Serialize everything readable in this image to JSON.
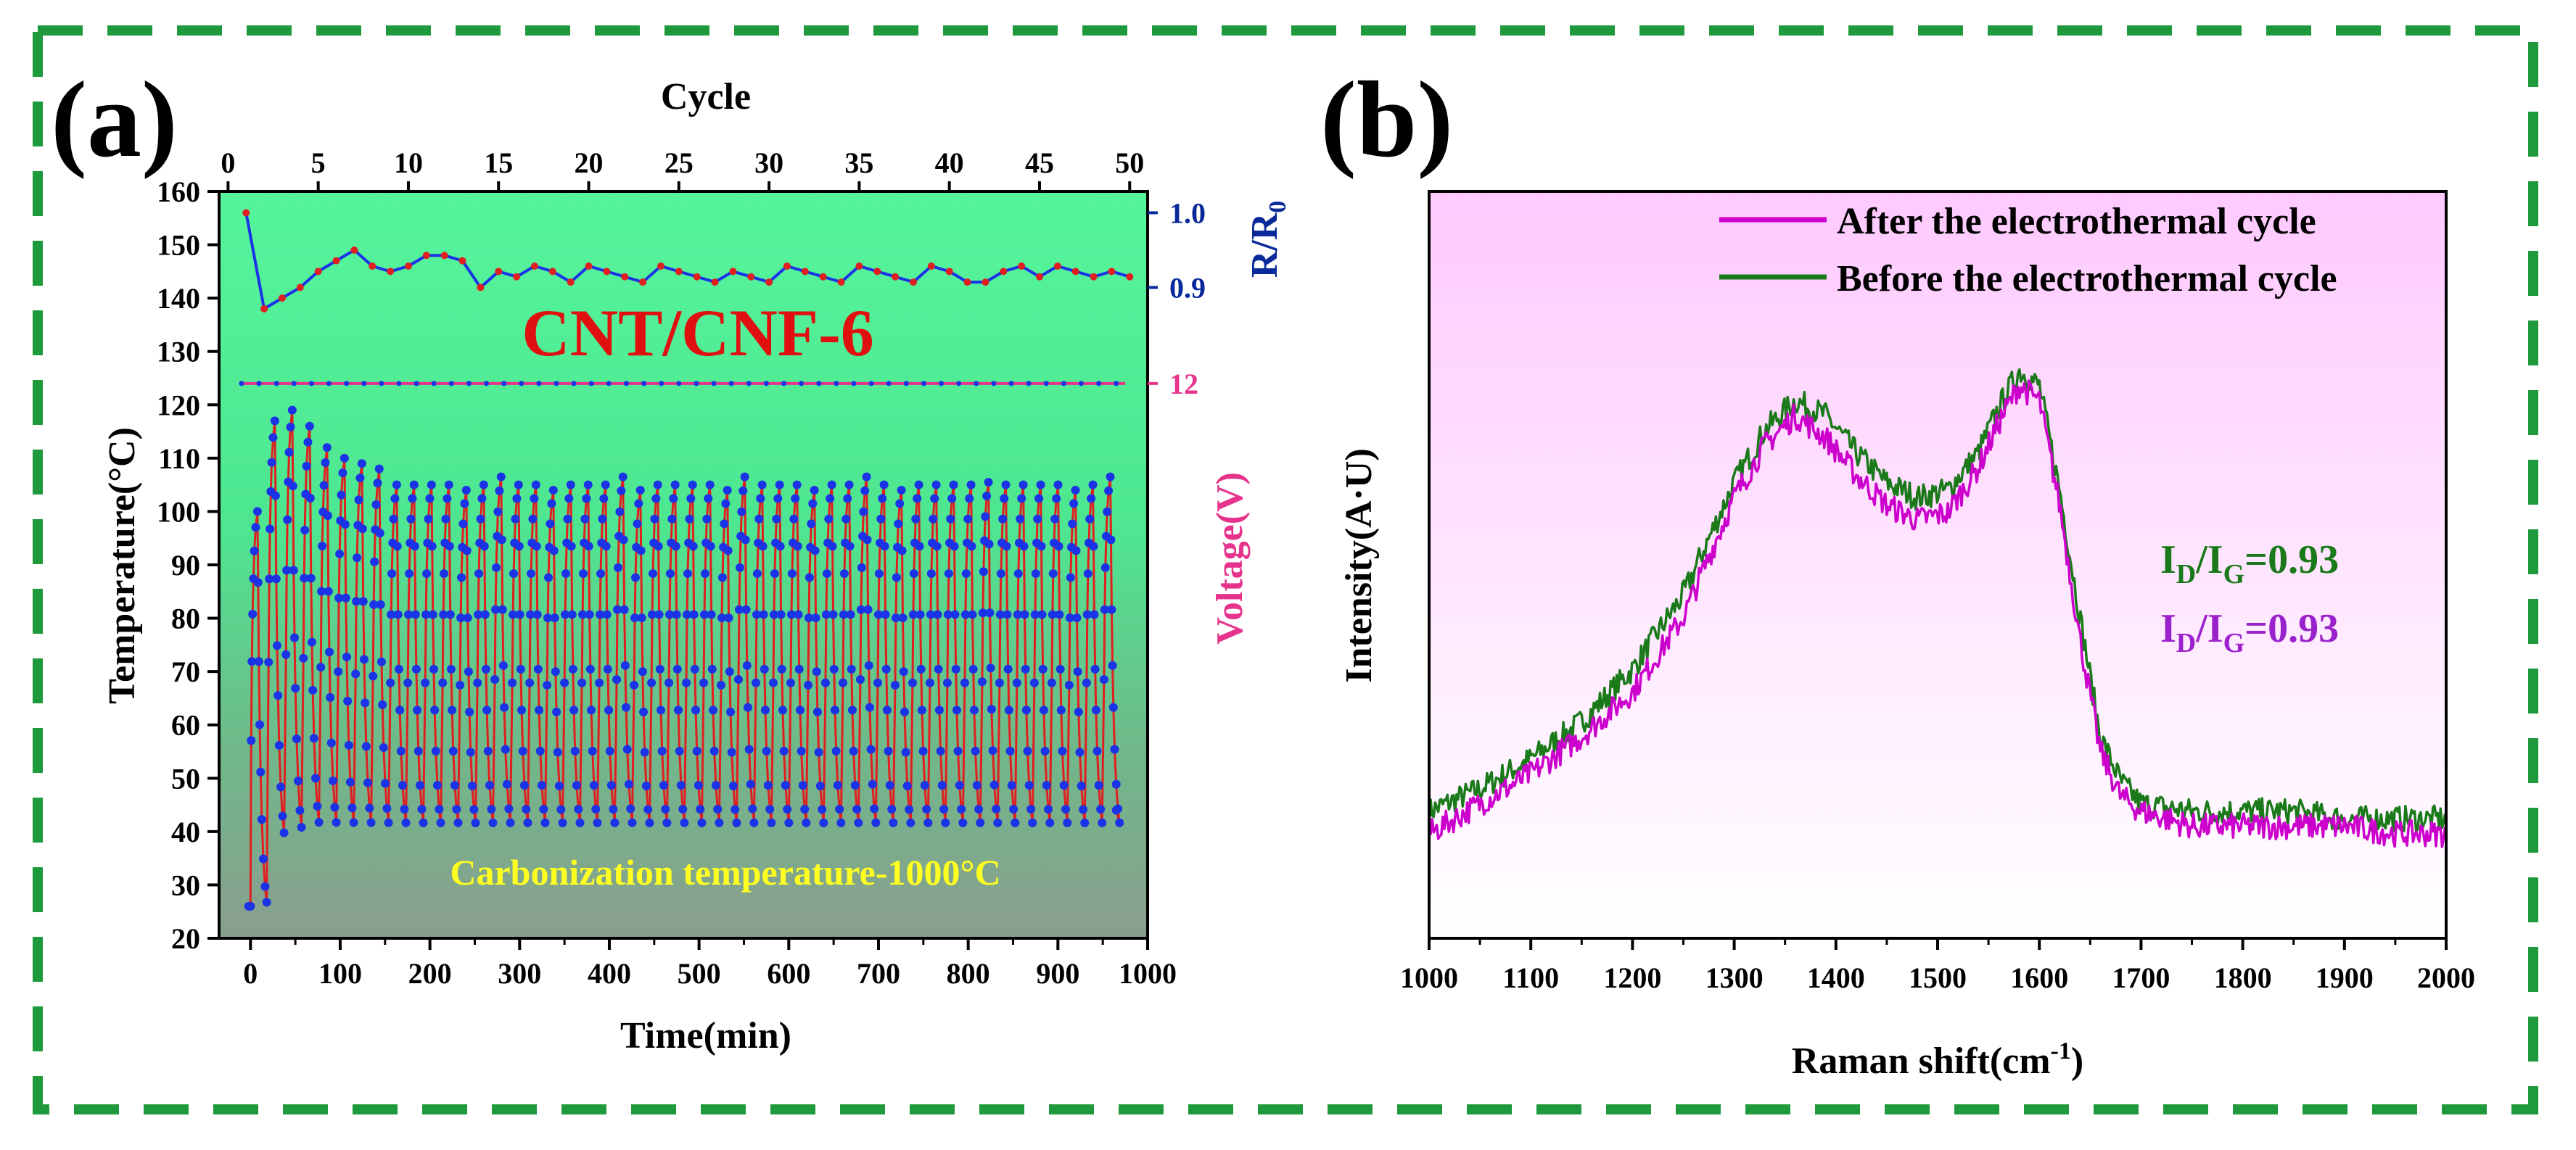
{
  "panel_a": {
    "label": "(a)",
    "sample_label": "CNT/CNF-6",
    "carbonization_text": "Carbonization temperature-1000°C",
    "chart_data": {
      "type": "line",
      "title": "",
      "xlabel": "Time(min)",
      "ylabel": "Temperature(°C)",
      "top_xlabel": "Cycle",
      "right_ylabel_r": "R/R",
      "right_ylabel_r_sub": "0",
      "right_ylabel_v": "Voltage(V)",
      "xlim": [
        -35,
        1000
      ],
      "ylim": [
        20,
        160
      ],
      "top_xlim": [
        0,
        50
      ],
      "xticks": [
        0,
        100,
        200,
        300,
        400,
        500,
        600,
        700,
        800,
        900,
        1000
      ],
      "yticks": [
        20,
        30,
        40,
        50,
        60,
        70,
        80,
        90,
        100,
        110,
        120,
        130,
        140,
        150,
        160
      ],
      "top_xticks": [
        0,
        5,
        10,
        15,
        20,
        25,
        30,
        35,
        40,
        45,
        50
      ],
      "right_r_ticks": [
        {
          "label": "1.0",
          "temp_equiv": 156
        },
        {
          "label": "0.9",
          "temp_equiv": 142
        }
      ],
      "right_v_ticks": [
        {
          "label": "12",
          "temp_equiv": 124
        }
      ],
      "cycles": 50,
      "period_min": 19.4,
      "temperature": {
        "start": 26,
        "steady_max": 105,
        "steady_min": 41,
        "early_peaks": [
          100,
          117,
          119,
          116,
          112,
          110,
          109,
          108
        ]
      },
      "resistance_ratio": {
        "cycle": [
          1,
          2,
          3,
          4,
          5,
          6,
          7,
          8,
          9,
          10,
          11,
          12,
          13,
          14,
          15,
          16,
          17,
          18,
          19,
          20,
          21,
          22,
          23,
          24,
          25,
          26,
          27,
          28,
          29,
          30,
          31,
          32,
          33,
          34,
          35,
          36,
          37,
          38,
          39,
          40,
          41,
          42,
          43,
          44,
          45,
          46,
          47,
          48,
          49,
          50
        ],
        "temp_equiv": [
          156,
          138,
          140,
          142,
          145,
          147,
          149,
          146,
          145,
          146,
          148,
          148,
          147,
          142,
          145,
          144,
          146,
          145,
          143,
          146,
          145,
          144,
          143,
          146,
          145,
          144,
          143,
          145,
          144,
          143,
          146,
          145,
          144,
          143,
          146,
          145,
          144,
          143,
          146,
          145,
          143,
          143,
          145,
          146,
          144,
          146,
          145,
          144,
          145,
          144
        ]
      },
      "voltage": {
        "value": 12,
        "temp_equiv": 124
      }
    }
  },
  "panel_b": {
    "label": "(b)",
    "id_ig_after": "I",
    "id_ig_sub_d": "D",
    "id_ig_slash": "/I",
    "id_ig_sub_g": "G",
    "id_ig_value_top": "=0.93",
    "id_ig_value_bottom": "=0.93",
    "chart_data": {
      "type": "line",
      "title": "",
      "xlabel": "Raman shift(cm",
      "xlabel_sup": "-1",
      "xlabel_end": ")",
      "ylabel": "Intensity(A·U)",
      "xlim": [
        1000,
        2000
      ],
      "ylim": [
        0,
        1
      ],
      "xticks": [
        1000,
        1100,
        1200,
        1300,
        1400,
        1500,
        1600,
        1700,
        1800,
        1900,
        2000
      ],
      "legend_position": "top-right",
      "series": [
        {
          "name": "After the electrothermal cycle",
          "color": "#cc00cc",
          "x": [
            1000,
            1050,
            1100,
            1150,
            1200,
            1250,
            1300,
            1330,
            1360,
            1390,
            1420,
            1450,
            1480,
            1510,
            1540,
            1560,
            1580,
            1600,
            1620,
            1640,
            1660,
            1680,
            1700,
            1750,
            1800,
            1850,
            1900,
            1950,
            2000
          ],
          "y": [
            0.14,
            0.18,
            0.22,
            0.27,
            0.33,
            0.43,
            0.59,
            0.66,
            0.7,
            0.67,
            0.62,
            0.58,
            0.56,
            0.57,
            0.63,
            0.69,
            0.74,
            0.72,
            0.58,
            0.4,
            0.25,
            0.19,
            0.17,
            0.15,
            0.15,
            0.15,
            0.15,
            0.14,
            0.14
          ]
        },
        {
          "name": "Before the electrothermal cycle",
          "color": "#1a7a1a",
          "x": [
            1000,
            1050,
            1100,
            1150,
            1200,
            1250,
            1300,
            1330,
            1360,
            1390,
            1420,
            1450,
            1480,
            1510,
            1540,
            1560,
            1580,
            1600,
            1620,
            1640,
            1660,
            1680,
            1700,
            1750,
            1800,
            1850,
            1900,
            1950,
            2000
          ],
          "y": [
            0.17,
            0.2,
            0.24,
            0.29,
            0.36,
            0.46,
            0.61,
            0.68,
            0.72,
            0.7,
            0.65,
            0.61,
            0.59,
            0.6,
            0.65,
            0.71,
            0.76,
            0.74,
            0.6,
            0.43,
            0.27,
            0.21,
            0.18,
            0.17,
            0.17,
            0.17,
            0.16,
            0.16,
            0.16
          ]
        }
      ]
    }
  },
  "colors": {
    "frame": "#1e9a3c",
    "red_line": "#e02020",
    "blue_point": "#1a33e6",
    "r_axis": "#0a2a9a",
    "voltage_axis": "#e6338c",
    "sample_text": "#e01010",
    "carbon_text": "#ffff22",
    "id_green": "#1a7a1a",
    "id_purple": "#9a22cc"
  }
}
